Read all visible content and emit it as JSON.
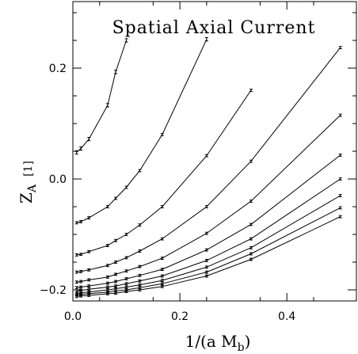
{
  "chart_data": {
    "type": "line",
    "title": "Spatial Axial Current",
    "xlabel": "1/(a M",
    "xlabel_sub": "b",
    "xlabel_close": ")",
    "ylabel": "Z",
    "ylabel_sub": "A",
    "ylabel_sup": "[1]",
    "xlim": [
      0,
      0.53
    ],
    "ylim": [
      -0.22,
      0.32
    ],
    "x_ticks": [
      {
        "value": 0.0,
        "label": "0.0"
      },
      {
        "value": 0.2,
        "label": "0.2"
      },
      {
        "value": 0.4,
        "label": "0.4"
      }
    ],
    "y_ticks": [
      {
        "value": -0.2,
        "label": "−0.2"
      },
      {
        "value": 0.0,
        "label": "0.0"
      },
      {
        "value": 0.2,
        "label": "0.2"
      }
    ],
    "grid": false,
    "series": [
      {
        "x": [
          0.007,
          0.015,
          0.03,
          0.065,
          0.08,
          0.1
        ],
        "y": [
          0.048,
          0.055,
          0.072,
          0.133,
          0.193,
          0.25
        ],
        "err": [
          0.003,
          0.003,
          0.003,
          0.003,
          0.003,
          0.003
        ]
      },
      {
        "x": [
          0.007,
          0.015,
          0.03,
          0.065,
          0.08,
          0.1,
          0.125,
          0.167,
          0.25
        ],
        "y": [
          -0.079,
          -0.077,
          -0.07,
          -0.05,
          -0.035,
          -0.015,
          0.015,
          0.08,
          0.252
        ],
        "err": [
          0.002,
          0.002,
          0.002,
          0.002,
          0.002,
          0.002,
          0.002,
          0.002,
          0.003
        ]
      },
      {
        "x": [
          0.007,
          0.015,
          0.03,
          0.065,
          0.08,
          0.1,
          0.125,
          0.167,
          0.25,
          0.333
        ],
        "y": [
          -0.137,
          -0.136,
          -0.131,
          -0.12,
          -0.111,
          -0.1,
          -0.083,
          -0.05,
          0.042,
          0.16
        ],
        "err": [
          0.002,
          0.002,
          0.002,
          0.002,
          0.002,
          0.002,
          0.002,
          0.002,
          0.002,
          0.002
        ]
      },
      {
        "x": [
          0.007,
          0.015,
          0.03,
          0.065,
          0.08,
          0.1,
          0.125,
          0.167,
          0.25,
          0.333,
          0.5
        ],
        "y": [
          -0.168,
          -0.167,
          -0.164,
          -0.156,
          -0.15,
          -0.142,
          -0.13,
          -0.108,
          -0.05,
          0.032,
          0.237
        ],
        "err": [
          0.002,
          0.002,
          0.002,
          0.002,
          0.002,
          0.002,
          0.002,
          0.002,
          0.002,
          0.002,
          0.002
        ]
      },
      {
        "x": [
          0.007,
          0.015,
          0.03,
          0.065,
          0.08,
          0.1,
          0.125,
          0.167,
          0.25,
          0.333,
          0.5
        ],
        "y": [
          -0.186,
          -0.185,
          -0.182,
          -0.177,
          -0.172,
          -0.166,
          -0.158,
          -0.143,
          -0.098,
          -0.04,
          0.115
        ],
        "err": [
          0.002,
          0.002,
          0.002,
          0.002,
          0.002,
          0.002,
          0.002,
          0.002,
          0.002,
          0.002,
          0.002
        ]
      },
      {
        "x": [
          0.007,
          0.015,
          0.03,
          0.065,
          0.08,
          0.1,
          0.125,
          0.167,
          0.25,
          0.333,
          0.5
        ],
        "y": [
          -0.196,
          -0.195,
          -0.193,
          -0.188,
          -0.185,
          -0.18,
          -0.174,
          -0.163,
          -0.128,
          -0.082,
          0.043
        ],
        "err": [
          0.002,
          0.002,
          0.002,
          0.002,
          0.002,
          0.002,
          0.002,
          0.002,
          0.002,
          0.002,
          0.002
        ]
      },
      {
        "x": [
          0.007,
          0.015,
          0.03,
          0.065,
          0.08,
          0.1,
          0.125,
          0.167,
          0.25,
          0.333,
          0.5
        ],
        "y": [
          -0.202,
          -0.201,
          -0.199,
          -0.195,
          -0.193,
          -0.189,
          -0.184,
          -0.175,
          -0.147,
          -0.108,
          0.0
        ],
        "err": [
          0.002,
          0.002,
          0.002,
          0.002,
          0.002,
          0.002,
          0.002,
          0.002,
          0.002,
          0.002,
          0.002
        ]
      },
      {
        "x": [
          0.007,
          0.015,
          0.03,
          0.065,
          0.08,
          0.1,
          0.125,
          0.167,
          0.25,
          0.333,
          0.5
        ],
        "y": [
          -0.206,
          -0.205,
          -0.204,
          -0.2,
          -0.198,
          -0.195,
          -0.191,
          -0.183,
          -0.159,
          -0.124,
          -0.03
        ],
        "err": [
          0.002,
          0.002,
          0.002,
          0.002,
          0.002,
          0.002,
          0.002,
          0.002,
          0.002,
          0.002,
          0.002
        ]
      },
      {
        "x": [
          0.007,
          0.015,
          0.03,
          0.065,
          0.08,
          0.1,
          0.125,
          0.167,
          0.25,
          0.333,
          0.5
        ],
        "y": [
          -0.209,
          -0.208,
          -0.207,
          -0.204,
          -0.202,
          -0.2,
          -0.196,
          -0.189,
          -0.168,
          -0.135,
          -0.052
        ],
        "err": [
          0.002,
          0.002,
          0.002,
          0.002,
          0.002,
          0.002,
          0.002,
          0.002,
          0.002,
          0.002,
          0.002
        ]
      },
      {
        "x": [
          0.007,
          0.015,
          0.03,
          0.065,
          0.08,
          0.1,
          0.125,
          0.167,
          0.25,
          0.333,
          0.5
        ],
        "y": [
          -0.212,
          -0.211,
          -0.21,
          -0.207,
          -0.206,
          -0.203,
          -0.2,
          -0.194,
          -0.175,
          -0.145,
          -0.068
        ],
        "err": [
          0.002,
          0.002,
          0.002,
          0.002,
          0.002,
          0.002,
          0.002,
          0.002,
          0.002,
          0.002,
          0.002
        ]
      }
    ]
  }
}
